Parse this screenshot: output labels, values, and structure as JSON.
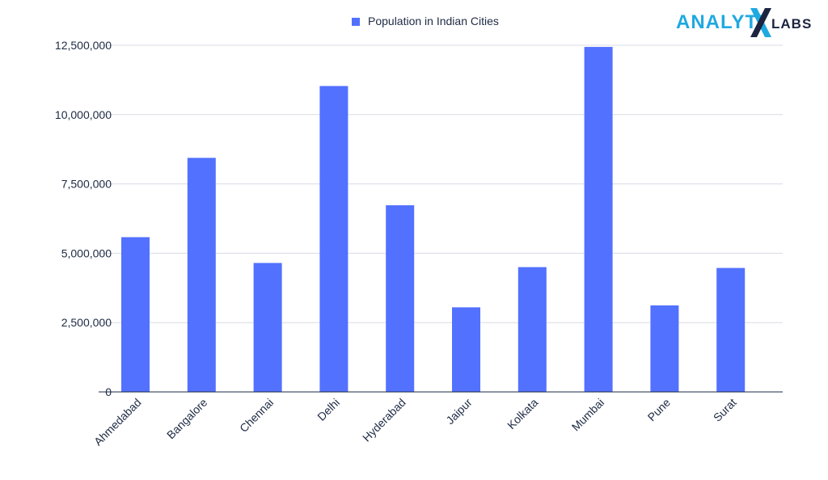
{
  "colors": {
    "bar": "#5271ff",
    "grid": "#d9dce6",
    "axis": "#1e2a44",
    "logo_blue": "#1fa9e1",
    "logo_dark": "#1c2440"
  },
  "logo": {
    "left_text": "ANALYTI",
    "right_text": "LABS"
  },
  "chart_data": {
    "type": "bar",
    "categories": [
      "Ahmedabad",
      "Bangalore",
      "Chennai",
      "Delhi",
      "Hyderabad",
      "Jaipur",
      "Kolkata",
      "Mumbai",
      "Pune",
      "Surat"
    ],
    "series": [
      {
        "name": "Population in Indian Cities",
        "values": [
          5580000,
          8440000,
          4650000,
          11030000,
          6730000,
          3050000,
          4500000,
          12440000,
          3120000,
          4470000
        ]
      }
    ],
    "ylim": [
      0,
      12500000
    ],
    "yticks": [
      0,
      2500000,
      5000000,
      7500000,
      10000000,
      12500000
    ],
    "ytick_labels": [
      "0",
      "2,500,000",
      "5,000,000",
      "7,500,000",
      "10,000,000",
      "12,500,000"
    ],
    "grid": true,
    "legend_position": "top-center"
  }
}
